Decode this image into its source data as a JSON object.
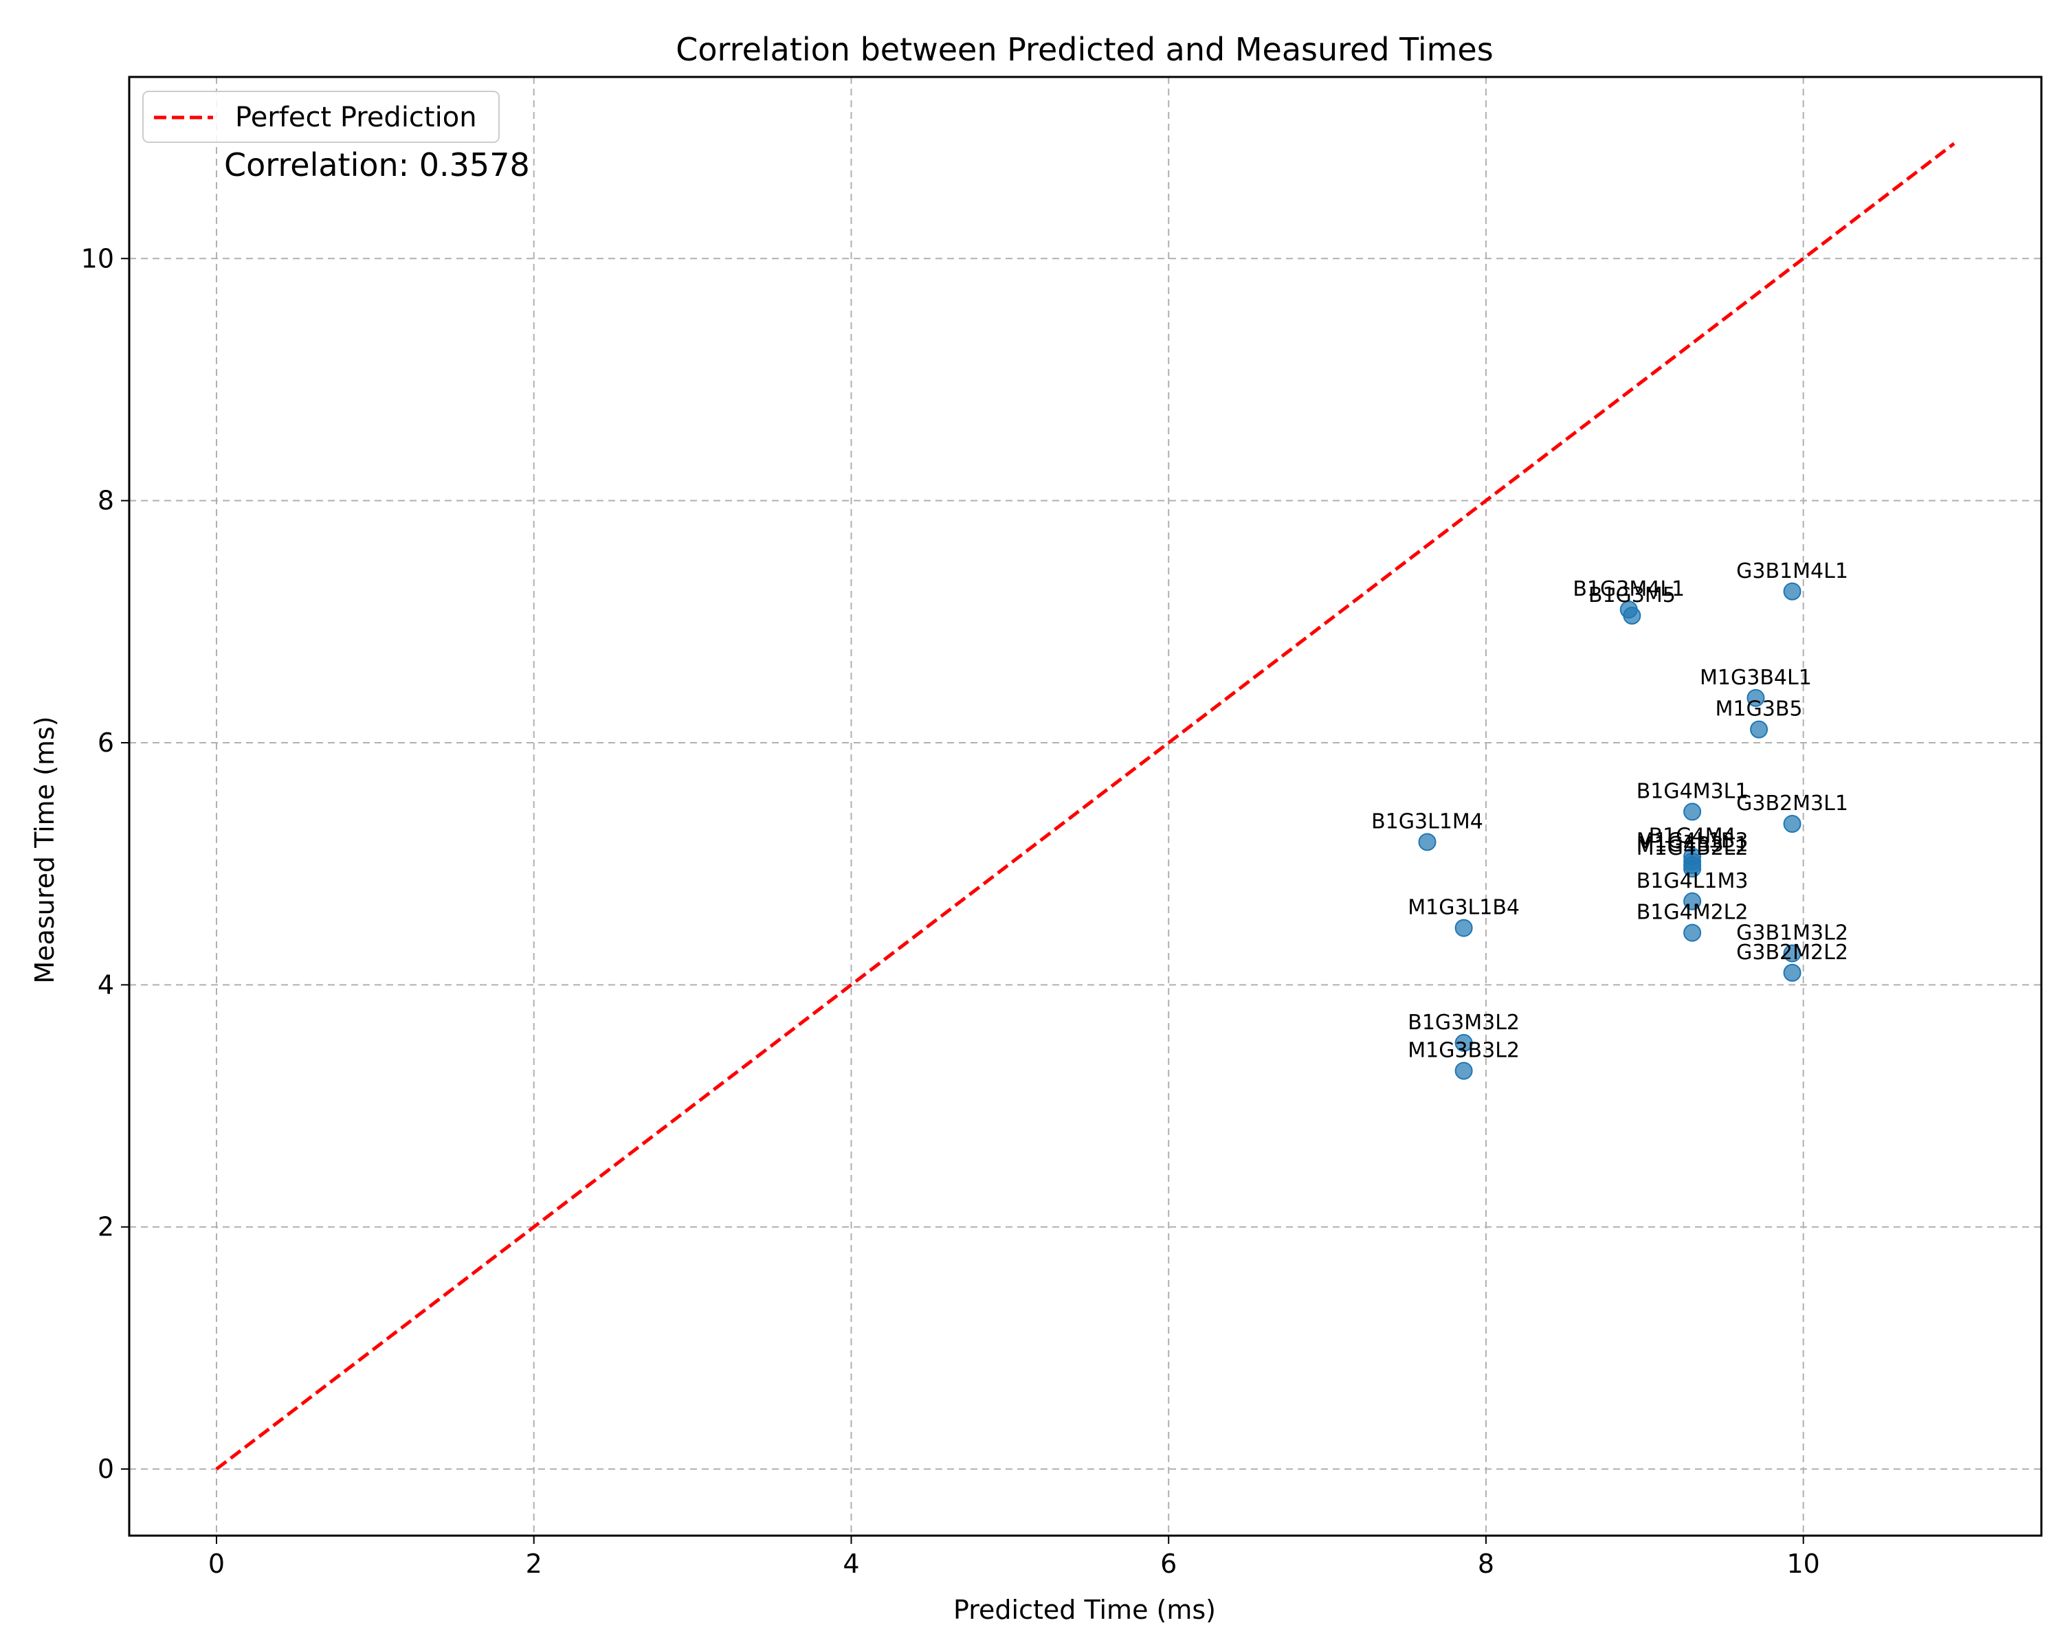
{
  "chart_data": {
    "type": "scatter",
    "title": "Correlation between Predicted and Measured Times",
    "xlabel": "Predicted Time (ms)",
    "ylabel": "Measured Time (ms)",
    "xlim": [
      -0.55,
      11.5
    ],
    "ylim": [
      -0.55,
      11.5
    ],
    "xticks": [
      0,
      2,
      4,
      6,
      8,
      10
    ],
    "yticks": [
      0,
      2,
      4,
      6,
      8,
      10
    ],
    "grid": true,
    "legend_placement": "top-left",
    "annotation": "Correlation: 0.3578",
    "reference_line": {
      "name": "Perfect Prediction",
      "x": [
        0,
        10.95
      ],
      "y": [
        0,
        10.95
      ],
      "style": "dashed",
      "color": "#ff0000"
    },
    "point_color": "#1f77b4",
    "points": [
      {
        "label": "G3B1M4L1",
        "x": 9.93,
        "y": 7.25
      },
      {
        "label": "B1G3M4L1",
        "x": 8.9,
        "y": 7.1
      },
      {
        "label": "B1G3M5",
        "x": 8.92,
        "y": 7.05
      },
      {
        "label": "M1G3B4L1",
        "x": 9.7,
        "y": 6.37
      },
      {
        "label": "M1G3B5",
        "x": 9.72,
        "y": 6.11
      },
      {
        "label": "B1G4M3L1",
        "x": 9.3,
        "y": 5.43
      },
      {
        "label": "G3B2M3L1",
        "x": 9.93,
        "y": 5.33
      },
      {
        "label": "B1G3L1M4",
        "x": 7.63,
        "y": 5.18
      },
      {
        "label": "B1G4M4",
        "x": 9.3,
        "y": 5.06
      },
      {
        "label": "M1G4L1B3",
        "x": 9.3,
        "y": 5.02
      },
      {
        "label": "M1G4B3L1",
        "x": 9.3,
        "y": 4.99
      },
      {
        "label": "M1G4B2L2",
        "x": 9.3,
        "y": 4.96
      },
      {
        "label": "B1G4L1M3",
        "x": 9.3,
        "y": 4.69
      },
      {
        "label": "M1G3L1B4",
        "x": 7.86,
        "y": 4.47
      },
      {
        "label": "B1G4M2L2",
        "x": 9.3,
        "y": 4.43
      },
      {
        "label": "G3B1M3L2",
        "x": 9.93,
        "y": 4.26
      },
      {
        "label": "G3B2M2L2",
        "x": 9.93,
        "y": 4.1
      },
      {
        "label": "B1G3M3L2",
        "x": 7.86,
        "y": 3.52
      },
      {
        "label": "M1G3B3L2",
        "x": 7.86,
        "y": 3.29
      }
    ]
  }
}
